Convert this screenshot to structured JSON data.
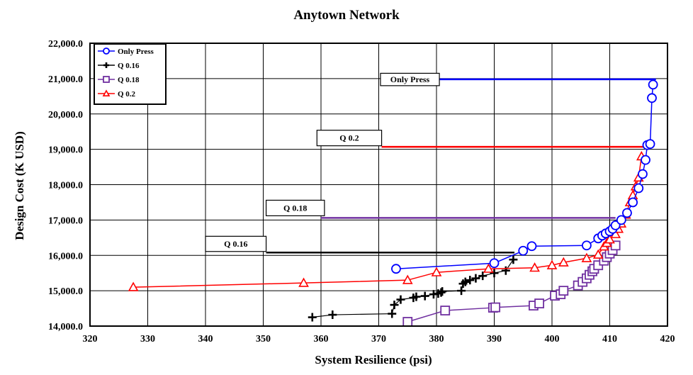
{
  "chart_data": {
    "type": "line",
    "title": "Anytown Network",
    "xlabel": "System Resilience (psi)",
    "ylabel": "Design Cost (K USD)",
    "xlim": [
      320,
      420
    ],
    "ylim": [
      14000,
      22000
    ],
    "x_ticks": [
      320,
      330,
      340,
      350,
      360,
      370,
      380,
      390,
      400,
      410,
      420
    ],
    "y_ticks": [
      14000,
      15000,
      16000,
      17000,
      18000,
      19000,
      20000,
      21000,
      22000
    ],
    "x_tick_labels": [
      "320",
      "330",
      "340",
      "350",
      "360",
      "370",
      "380",
      "390",
      "400",
      "410",
      "420"
    ],
    "y_tick_labels": [
      "14,000.0",
      "15,000.0",
      "16,000.0",
      "17,000.0",
      "18,000.0",
      "19,000.0",
      "20,000.0",
      "21,000.0",
      "22,000.0"
    ],
    "grid": true,
    "legend_position": "top-left",
    "series": [
      {
        "name": "Only Press",
        "color": "#0000ff",
        "marker": "circle",
        "x": [
          373,
          390,
          395,
          396.5,
          406,
          408,
          408.7,
          409.3,
          410,
          410.5,
          411,
          412,
          413,
          414,
          415,
          415.7,
          416.2,
          416.5,
          417,
          417.3,
          417.5
        ],
        "y": [
          15620,
          15780,
          16130,
          16260,
          16280,
          16480,
          16560,
          16620,
          16680,
          16750,
          16850,
          17000,
          17200,
          17500,
          17900,
          18300,
          18700,
          19120,
          19150,
          20450,
          20830
        ]
      },
      {
        "name": "Q 0.16",
        "color": "#000000",
        "marker": "plus",
        "x": [
          358.5,
          362,
          372.3,
          372.7,
          373.8,
          376,
          376.5,
          378,
          379.5,
          380.3,
          380.8,
          381,
          384.3,
          384.6,
          385,
          385.8,
          386.8,
          388,
          390,
          392,
          393.3
        ],
        "y": [
          14250,
          14320,
          14350,
          14600,
          14750,
          14800,
          14830,
          14850,
          14900,
          14920,
          14950,
          14980,
          15000,
          15200,
          15250,
          15300,
          15350,
          15420,
          15500,
          15570,
          15880
        ]
      },
      {
        "name": "Q 0.18",
        "color": "#7030a0",
        "marker": "square",
        "x": [
          375,
          381.5,
          389.8,
          390.2,
          396.8,
          397.8,
          400.5,
          401.5,
          402,
          404.5,
          405.3,
          406,
          406.5,
          407,
          407.3,
          408,
          409,
          409.5,
          410,
          410.5,
          411
        ],
        "y": [
          14120,
          14440,
          14520,
          14530,
          14580,
          14640,
          14860,
          14900,
          15000,
          15150,
          15250,
          15350,
          15450,
          15550,
          15620,
          15720,
          15850,
          15950,
          16050,
          16150,
          16280
        ]
      },
      {
        "name": "Q 0.2",
        "color": "#ff0000",
        "marker": "triangle",
        "x": [
          327.5,
          357,
          375,
          380,
          389,
          397,
          400,
          402,
          406,
          408,
          409,
          409.5,
          410,
          411,
          411.5,
          412,
          412.8,
          413.5,
          414,
          414.5,
          415,
          415.5
        ],
        "y": [
          15100,
          15220,
          15300,
          15520,
          15620,
          15650,
          15720,
          15800,
          15920,
          16020,
          16250,
          16350,
          16450,
          16600,
          16750,
          16900,
          17150,
          17500,
          17700,
          17950,
          18200,
          18800
        ]
      }
    ],
    "annotations": [
      {
        "text": "Only Press",
        "color": "#0000ff",
        "y": 20980,
        "x_start": 380.5,
        "x_end": 418,
        "box_x": [
          370.3,
          380.5
        ],
        "box_y": [
          21150,
          20800
        ]
      },
      {
        "text": "Q 0.2",
        "color": "#ff0000",
        "y": 19070,
        "x_start": 370.5,
        "x_end": 416,
        "box_x": [
          359.3,
          370.5
        ],
        "box_y": [
          19540,
          19100
        ]
      },
      {
        "text": "Q 0.18",
        "color": "#7030a0",
        "y": 17060,
        "x_start": 360,
        "x_end": 411,
        "box_x": [
          350.5,
          360.6
        ],
        "box_y": [
          17560,
          17120
        ]
      },
      {
        "text": "Q 0.16",
        "color": "#000000",
        "y": 16080,
        "x_start": 350.5,
        "x_end": 393.5,
        "box_x": [
          340,
          350.5
        ],
        "box_y": [
          16540,
          16110
        ]
      }
    ]
  }
}
